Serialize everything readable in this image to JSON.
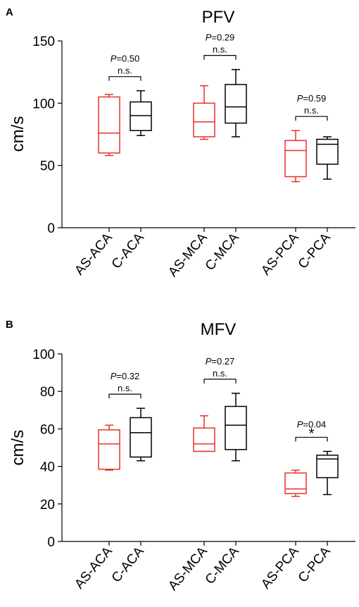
{
  "chart_data": [
    {
      "type": "box",
      "panel": "A",
      "title": "PFV",
      "ylabel": "cm/s",
      "ylim": [
        0,
        150
      ],
      "yticks": [
        0,
        50,
        100,
        150
      ],
      "categories": [
        "AS-ACA",
        "C-ACA",
        "AS-MCA",
        "C-MCA",
        "AS-PCA",
        "C-PCA"
      ],
      "colors": [
        "#e8312a",
        "#000000",
        "#e8312a",
        "#000000",
        "#e8312a",
        "#000000"
      ],
      "boxes": [
        {
          "min": 58,
          "q1": 60,
          "median": 76,
          "q3": 105,
          "max": 107
        },
        {
          "min": 74,
          "q1": 78,
          "median": 90,
          "q3": 101,
          "max": 110
        },
        {
          "min": 71,
          "q1": 73,
          "median": 85,
          "q3": 100,
          "max": 114
        },
        {
          "min": 73,
          "q1": 84,
          "median": 97,
          "q3": 115,
          "max": 127
        },
        {
          "min": 37,
          "q1": 41,
          "median": 62,
          "q3": 70,
          "max": 78
        },
        {
          "min": 39,
          "q1": 51,
          "median": 67,
          "q3": 71,
          "max": 73
        }
      ],
      "comparisons": [
        {
          "pair": [
            0,
            1
          ],
          "p_label": "P",
          "p_value": "=0.50",
          "sig": "n.s."
        },
        {
          "pair": [
            2,
            3
          ],
          "p_label": "P",
          "p_value": "=0.29",
          "sig": "n.s."
        },
        {
          "pair": [
            4,
            5
          ],
          "p_label": "P",
          "p_value": "=0.59",
          "sig": "n.s."
        }
      ]
    },
    {
      "type": "box",
      "panel": "B",
      "title": "MFV",
      "ylabel": "cm/s",
      "ylim": [
        0,
        100
      ],
      "yticks": [
        0,
        20,
        40,
        60,
        80,
        100
      ],
      "categories": [
        "AS-ACA",
        "C-ACA",
        "AS-MCA",
        "C-MCA",
        "AS-PCA",
        "C-PCA"
      ],
      "colors": [
        "#e8312a",
        "#000000",
        "#e8312a",
        "#000000",
        "#e8312a",
        "#000000"
      ],
      "boxes": [
        {
          "min": 38,
          "q1": 38.5,
          "median": 52,
          "q3": 59.5,
          "max": 62
        },
        {
          "min": 43,
          "q1": 45,
          "median": 58,
          "q3": 66,
          "max": 71
        },
        {
          "min": 48,
          "q1": 48,
          "median": 52,
          "q3": 60.5,
          "max": 67
        },
        {
          "min": 43,
          "q1": 49,
          "median": 62,
          "q3": 72,
          "max": 79
        },
        {
          "min": 24,
          "q1": 25.5,
          "median": 28,
          "q3": 36.5,
          "max": 38
        },
        {
          "min": 25,
          "q1": 34,
          "median": 44,
          "q3": 46,
          "max": 48
        }
      ],
      "comparisons": [
        {
          "pair": [
            0,
            1
          ],
          "p_label": "P",
          "p_value": "=0.32",
          "sig": "n.s."
        },
        {
          "pair": [
            2,
            3
          ],
          "p_label": "P",
          "p_value": "=0.27",
          "sig": "n.s."
        },
        {
          "pair": [
            4,
            5
          ],
          "p_label": "P",
          "p_value": "=0.04",
          "sig": "*"
        }
      ]
    }
  ]
}
